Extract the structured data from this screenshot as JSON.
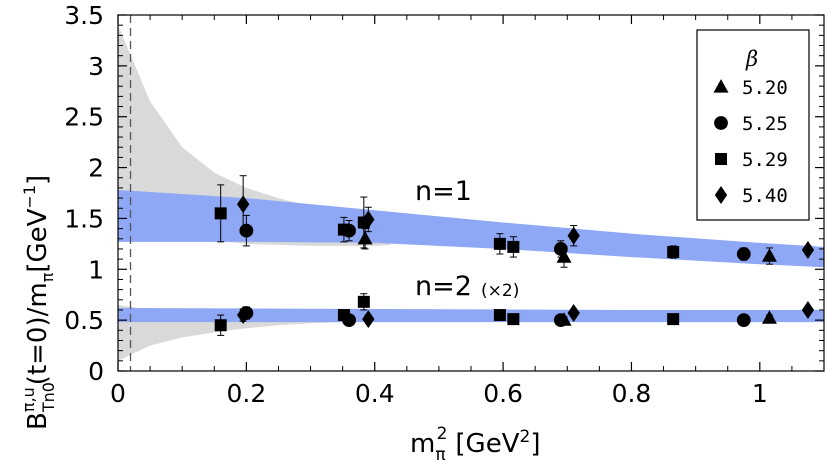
{
  "chart_data": {
    "type": "scatter",
    "title": "",
    "xlabel": "m_π² [GeV²]",
    "ylabel": "B^{π,u}_{Tn0}(t=0)/m_π [GeV⁻¹]",
    "xlim": [
      0,
      1.1
    ],
    "ylim": [
      0,
      3.5
    ],
    "x_ticks": [
      0,
      0.2,
      0.4,
      0.6,
      0.8,
      1
    ],
    "x_tick_labels": [
      "0",
      "0.2",
      "0.4",
      "0.6",
      "0.8",
      "1"
    ],
    "y_ticks": [
      0,
      0.5,
      1,
      1.5,
      2,
      2.5,
      3,
      3.5
    ],
    "y_tick_labels": [
      "0",
      "0.5",
      "1",
      "1.5",
      "2",
      "2.5",
      "3",
      "3.5"
    ],
    "physical_point_x": 0.0195,
    "legend": {
      "title": "β",
      "placement": "top-right",
      "entries": [
        {
          "label": "5.20",
          "marker": "triangle"
        },
        {
          "label": "5.25",
          "marker": "circle"
        },
        {
          "label": "5.29",
          "marker": "square"
        },
        {
          "label": "5.40",
          "marker": "diamond"
        }
      ]
    },
    "annotations": {
      "n1": "n=1",
      "n2": "n=2",
      "n2_scale": "(×2)"
    },
    "bands": [
      {
        "name": "gray band n=1 (chiral extrapolation)",
        "color": "#d9d9d9",
        "x": [
          0.0,
          0.05,
          0.1,
          0.15,
          0.2,
          0.25,
          0.3,
          0.35,
          0.4,
          0.425
        ],
        "lower": [
          1.55,
          1.42,
          1.33,
          1.28,
          1.25,
          1.24,
          1.23,
          1.23,
          1.23,
          1.24
        ],
        "upper": [
          3.4,
          2.65,
          2.2,
          1.95,
          1.8,
          1.7,
          1.62,
          1.57,
          1.54,
          1.53
        ]
      },
      {
        "name": "gray band n=2 (chiral extrapolation)",
        "color": "#d9d9d9",
        "x": [
          0.0,
          0.05,
          0.1,
          0.15,
          0.2,
          0.25,
          0.3,
          0.35,
          0.4,
          0.425
        ],
        "lower": [
          0.1,
          0.25,
          0.33,
          0.38,
          0.42,
          0.45,
          0.47,
          0.48,
          0.49,
          0.5
        ],
        "upper": [
          0.65,
          0.6,
          0.58,
          0.58,
          0.58,
          0.58,
          0.58,
          0.58,
          0.58,
          0.58
        ]
      },
      {
        "name": "blue band n=1",
        "color": "#8fa8f5",
        "x": [
          0.0,
          0.2,
          0.4,
          0.6,
          0.8,
          1.0,
          1.1
        ],
        "lower": [
          1.27,
          1.27,
          1.26,
          1.2,
          1.12,
          1.05,
          1.02
        ],
        "upper": [
          1.78,
          1.7,
          1.58,
          1.46,
          1.35,
          1.26,
          1.22
        ]
      },
      {
        "name": "blue band n=2",
        "color": "#8fa8f5",
        "x": [
          0.0,
          0.4,
          0.8,
          1.1
        ],
        "lower": [
          0.48,
          0.48,
          0.48,
          0.48
        ],
        "upper": [
          0.62,
          0.61,
          0.6,
          0.6
        ]
      }
    ],
    "series": [
      {
        "name": "5.20",
        "marker": "triangle",
        "points": [
          {
            "x": 0.385,
            "y": 1.3,
            "err": 0.1
          },
          {
            "x": 0.695,
            "y": 1.12,
            "err": 0.1
          },
          {
            "x": 1.015,
            "y": 1.13,
            "err": 0.08
          },
          {
            "x": 0.695,
            "y": 0.5,
            "err": 0.03
          },
          {
            "x": 1.015,
            "y": 0.52,
            "err": 0.03
          }
        ]
      },
      {
        "name": "5.25",
        "marker": "circle",
        "points": [
          {
            "x": 0.2,
            "y": 1.38,
            "err": 0.15
          },
          {
            "x": 0.36,
            "y": 1.38,
            "err": 0.1
          },
          {
            "x": 0.69,
            "y": 1.2,
            "err": 0.08
          },
          {
            "x": 0.975,
            "y": 1.15,
            "err": 0.06
          },
          {
            "x": 0.2,
            "y": 0.57,
            "err": 0.06
          },
          {
            "x": 0.36,
            "y": 0.5,
            "err": 0.04
          },
          {
            "x": 0.69,
            "y": 0.5,
            "err": 0.03
          },
          {
            "x": 0.975,
            "y": 0.5,
            "err": 0.03
          }
        ]
      },
      {
        "name": "5.29",
        "marker": "square",
        "points": [
          {
            "x": 0.16,
            "y": 1.55,
            "err": 0.28
          },
          {
            "x": 0.352,
            "y": 1.39,
            "err": 0.12
          },
          {
            "x": 0.383,
            "y": 1.46,
            "err": 0.25
          },
          {
            "x": 0.595,
            "y": 1.25,
            "err": 0.1
          },
          {
            "x": 0.616,
            "y": 1.22,
            "err": 0.1
          },
          {
            "x": 0.865,
            "y": 1.17,
            "err": 0.06
          },
          {
            "x": 0.16,
            "y": 0.45,
            "err": 0.1
          },
          {
            "x": 0.352,
            "y": 0.55,
            "err": 0.05
          },
          {
            "x": 0.383,
            "y": 0.68,
            "err": 0.08
          },
          {
            "x": 0.595,
            "y": 0.55,
            "err": 0.03
          },
          {
            "x": 0.616,
            "y": 0.51,
            "err": 0.03
          },
          {
            "x": 0.865,
            "y": 0.51,
            "err": 0.03
          }
        ]
      },
      {
        "name": "5.40",
        "marker": "diamond",
        "points": [
          {
            "x": 0.195,
            "y": 1.64,
            "err": 0.28
          },
          {
            "x": 0.39,
            "y": 1.49,
            "err": 0.12
          },
          {
            "x": 0.71,
            "y": 1.33,
            "err": 0.1
          },
          {
            "x": 1.075,
            "y": 1.19,
            "err": 0.04
          },
          {
            "x": 0.195,
            "y": 0.55,
            "err": 0.06
          },
          {
            "x": 0.39,
            "y": 0.51,
            "err": 0.04
          },
          {
            "x": 0.71,
            "y": 0.57,
            "err": 0.03
          },
          {
            "x": 1.075,
            "y": 0.6,
            "err": 0.03
          }
        ]
      }
    ]
  }
}
